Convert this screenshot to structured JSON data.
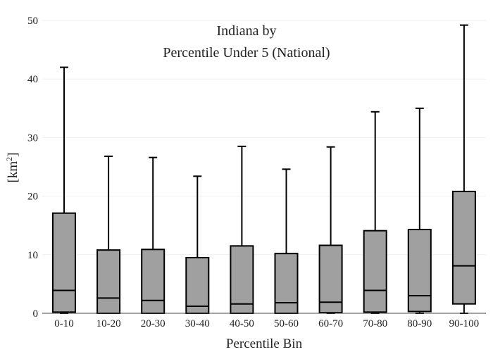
{
  "chart_data": {
    "type": "box",
    "title_lines": [
      "Indiana  by",
      "Percentile Under 5 (National)"
    ],
    "xlabel": "Percentile Bin",
    "ylabel": "[km",
    "ylabel_sup": "2",
    "ylabel_end": "]",
    "ylim": [
      0,
      50
    ],
    "yticks": [
      0,
      10,
      20,
      30,
      40,
      50
    ],
    "ytick_labels": [
      "0",
      "10",
      "20",
      "30",
      "40",
      "50"
    ],
    "grid": true,
    "categories": [
      "0-10",
      "10-20",
      "20-30",
      "30-40",
      "40-50",
      "50-60",
      "60-70",
      "70-80",
      "80-90",
      "90-100"
    ],
    "boxes": [
      {
        "min": 0.0,
        "q1": 0.2,
        "median": 3.9,
        "q3": 17.1,
        "max": 42.0
      },
      {
        "min": 0.0,
        "q1": 0.0,
        "median": 2.6,
        "q3": 10.8,
        "max": 26.8
      },
      {
        "min": 0.0,
        "q1": 0.0,
        "median": 2.2,
        "q3": 10.9,
        "max": 26.6
      },
      {
        "min": 0.0,
        "q1": 0.0,
        "median": 1.2,
        "q3": 9.5,
        "max": 23.4
      },
      {
        "min": 0.0,
        "q1": 0.0,
        "median": 1.6,
        "q3": 11.5,
        "max": 28.5
      },
      {
        "min": 0.0,
        "q1": 0.0,
        "median": 1.8,
        "q3": 10.2,
        "max": 24.6
      },
      {
        "min": 0.0,
        "q1": 0.1,
        "median": 1.9,
        "q3": 11.6,
        "max": 28.4
      },
      {
        "min": 0.0,
        "q1": 0.2,
        "median": 3.9,
        "q3": 14.1,
        "max": 34.4
      },
      {
        "min": 0.0,
        "q1": 0.3,
        "median": 3.0,
        "q3": 14.3,
        "max": 35.0
      },
      {
        "min": 0.0,
        "q1": 1.6,
        "median": 8.1,
        "q3": 20.8,
        "max": 49.2
      }
    ]
  }
}
